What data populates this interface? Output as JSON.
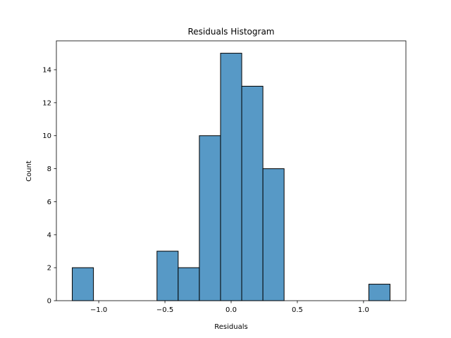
{
  "chart_data": {
    "type": "bar",
    "title": "Residuals Histogram",
    "xlabel": "Residuals",
    "ylabel": "Count",
    "xlim": [
      -1.32,
      1.32
    ],
    "ylim": [
      0,
      15.75
    ],
    "x_ticks": [
      -1.0,
      -0.5,
      0.0,
      0.5,
      1.0
    ],
    "x_tick_labels": [
      "−1.0",
      "−0.5",
      "0.0",
      "0.5",
      "1.0"
    ],
    "y_ticks": [
      0,
      2,
      4,
      6,
      8,
      10,
      12,
      14
    ],
    "y_tick_labels": [
      "0",
      "2",
      "4",
      "6",
      "8",
      "10",
      "12",
      "14"
    ],
    "grid": false,
    "bars": [
      {
        "x0": -1.2,
        "x1": -1.04,
        "count": 2
      },
      {
        "x0": -1.04,
        "x1": -0.88,
        "count": 0
      },
      {
        "x0": -0.88,
        "x1": -0.72,
        "count": 0
      },
      {
        "x0": -0.72,
        "x1": -0.56,
        "count": 0
      },
      {
        "x0": -0.56,
        "x1": -0.4,
        "count": 3
      },
      {
        "x0": -0.4,
        "x1": -0.24,
        "count": 2
      },
      {
        "x0": -0.24,
        "x1": -0.08,
        "count": 10
      },
      {
        "x0": -0.08,
        "x1": 0.08,
        "count": 15
      },
      {
        "x0": 0.08,
        "x1": 0.24,
        "count": 13
      },
      {
        "x0": 0.24,
        "x1": 0.4,
        "count": 8
      },
      {
        "x0": 0.4,
        "x1": 0.56,
        "count": 0
      },
      {
        "x0": 0.56,
        "x1": 0.72,
        "count": 0
      },
      {
        "x0": 0.72,
        "x1": 0.88,
        "count": 0
      },
      {
        "x0": 0.88,
        "x1": 1.04,
        "count": 0
      },
      {
        "x0": 1.04,
        "x1": 1.2,
        "count": 1
      }
    ],
    "colors": {
      "bar_fill": "#5799c6",
      "bar_edge": "#000000",
      "axes": "#000000"
    }
  }
}
